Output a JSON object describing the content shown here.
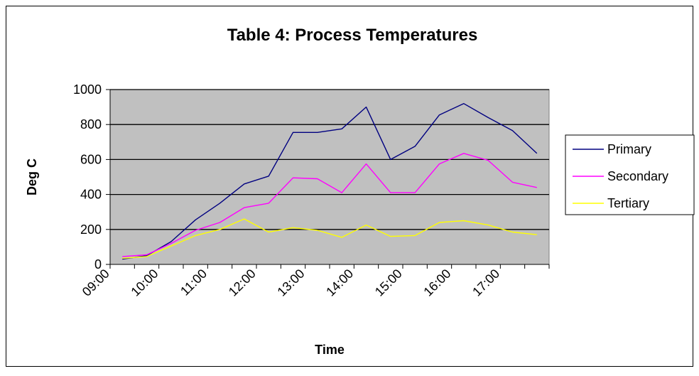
{
  "chart_data": {
    "type": "line",
    "title": "Table 4: Process Temperatures",
    "xlabel": "Time",
    "ylabel": "Deg C",
    "ylim": [
      0,
      1000
    ],
    "y_ticks": [
      "0",
      "200",
      "400",
      "600",
      "800",
      "1000"
    ],
    "x_tick_labels": [
      "09:00",
      "10:00",
      "11:00",
      "12:00",
      "13:00",
      "14:00",
      "15:00",
      "16:00",
      "17:00"
    ],
    "x": [
      "09:15",
      "09:45",
      "10:15",
      "10:45",
      "11:15",
      "11:45",
      "12:15",
      "12:45",
      "13:15",
      "13:45",
      "14:15",
      "14:45",
      "15:15",
      "15:45",
      "16:15",
      "16:45",
      "17:15",
      "17:45"
    ],
    "grid": true,
    "legend_position": "right",
    "plot_background": "#c0c0c0",
    "series": [
      {
        "name": "Primary",
        "color": "#000080",
        "values": [
          30,
          50,
          130,
          255,
          350,
          460,
          505,
          755,
          755,
          775,
          900,
          600,
          675,
          855,
          920,
          840,
          765,
          635
        ]
      },
      {
        "name": "Secondary",
        "color": "#ff00ff",
        "values": [
          45,
          55,
          120,
          195,
          240,
          325,
          350,
          495,
          490,
          410,
          575,
          410,
          410,
          575,
          635,
          595,
          470,
          440
        ]
      },
      {
        "name": "Tertiary",
        "color": "#ffff00",
        "values": [
          35,
          45,
          105,
          165,
          200,
          260,
          185,
          210,
          195,
          155,
          225,
          160,
          165,
          240,
          250,
          225,
          185,
          170
        ]
      }
    ]
  }
}
